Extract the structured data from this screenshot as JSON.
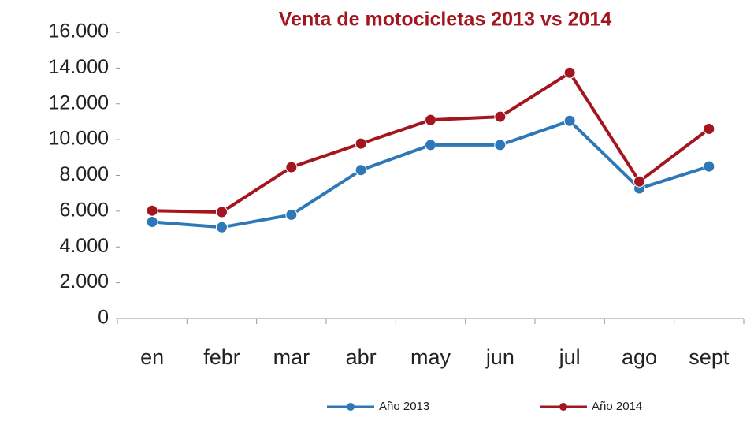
{
  "chart_data": {
    "type": "line",
    "title": "Venta de motocicletas  2013 vs 2014",
    "categories": [
      "en",
      "febr",
      "mar",
      "abr",
      "may",
      "jun",
      "jul",
      "ago",
      "sept"
    ],
    "series": [
      {
        "name": "Año 2013",
        "color": "#2f78b8",
        "values": [
          5400,
          5100,
          5800,
          8300,
          9700,
          9700,
          11050,
          7270,
          8500
        ]
      },
      {
        "name": "Año 2014",
        "color": "#a3161f",
        "values": [
          6030,
          5950,
          8460,
          9780,
          11100,
          11280,
          13740,
          7660,
          10600
        ]
      }
    ],
    "ylim": [
      0,
      16000
    ],
    "yticks": [
      0,
      {
        "value": 2000,
        "label": "2.000"
      },
      {
        "value": 4000,
        "label": "4.000"
      },
      {
        "value": 6000,
        "label": "6.000"
      },
      {
        "value": 8000,
        "label": "8.000"
      },
      {
        "value": 10000,
        "label": "10.000"
      },
      {
        "value": 12000,
        "label": "12.000"
      },
      {
        "value": 14000,
        "label": "14.000"
      },
      {
        "value": 16000,
        "label": "16.000"
      }
    ],
    "grid": false,
    "legend": "bottom"
  }
}
